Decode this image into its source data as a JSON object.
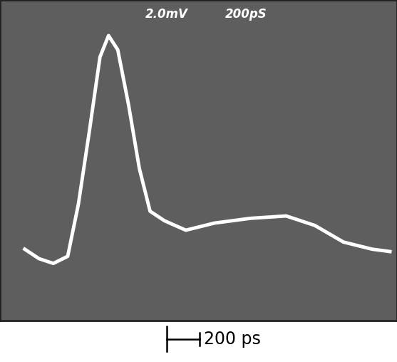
{
  "chart_data": {
    "type": "line",
    "annotations": [
      "2.0mV",
      "200pS"
    ],
    "x": [
      0,
      87,
      174,
      261,
      326,
      391,
      457,
      509,
      565,
      630,
      696,
      761,
      848,
      978,
      1152,
      1370,
      1587,
      1761,
      1935,
      2109,
      2217
    ],
    "series": [
      {
        "color": "#ffffff",
        "values": [
          10,
          6,
          4,
          7,
          29,
          59,
          91,
          100,
          94,
          71,
          44,
          26,
          22,
          18,
          21,
          23,
          24,
          20,
          13,
          10,
          9
        ]
      }
    ],
    "xlim": [
      -150,
      2260
    ],
    "ylim": [
      -20,
      115
    ],
    "tick_labels": false,
    "scale_bar": {
      "value": 200,
      "label": "200 ps"
    }
  }
}
